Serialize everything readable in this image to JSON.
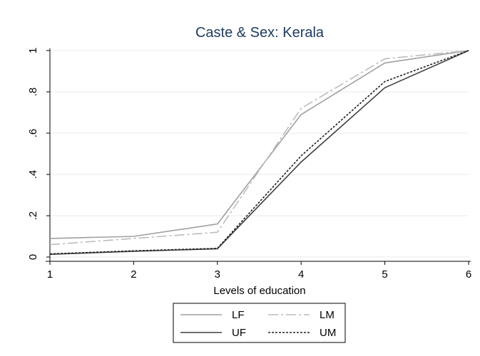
{
  "chart_data": {
    "type": "line",
    "title": "Caste & Sex: Kerala",
    "xlabel": "Levels of education",
    "ylabel": "",
    "x": [
      1,
      2,
      3,
      4,
      5,
      6
    ],
    "xlim": [
      1,
      6
    ],
    "ylim": [
      0,
      1
    ],
    "xticks": [
      "1",
      "2",
      "3",
      "4",
      "5",
      "6"
    ],
    "yticks": [
      {
        "value": 0,
        "label": "0"
      },
      {
        "value": 0.2,
        "label": ".2"
      },
      {
        "value": 0.4,
        "label": ".4"
      },
      {
        "value": 0.6,
        "label": ".6"
      },
      {
        "value": 0.8,
        "label": ".8"
      },
      {
        "value": 1,
        "label": "1"
      }
    ],
    "grid": true,
    "legend_position": "bottom",
    "series": [
      {
        "name": "LF",
        "values": [
          0.09,
          0.1,
          0.16,
          0.69,
          0.94,
          1.0
        ],
        "color": "#a0a0a0",
        "dash": "solid"
      },
      {
        "name": "LM",
        "values": [
          0.06,
          0.09,
          0.12,
          0.72,
          0.96,
          1.0
        ],
        "color": "#bcbcbc",
        "dash": "longdash"
      },
      {
        "name": "UF",
        "values": [
          0.013,
          0.028,
          0.04,
          0.46,
          0.82,
          1.0
        ],
        "color": "#404040",
        "dash": "solid"
      },
      {
        "name": "UM",
        "values": [
          0.015,
          0.03,
          0.042,
          0.49,
          0.85,
          1.0
        ],
        "color": "#202020",
        "dash": "shortdash"
      }
    ]
  }
}
